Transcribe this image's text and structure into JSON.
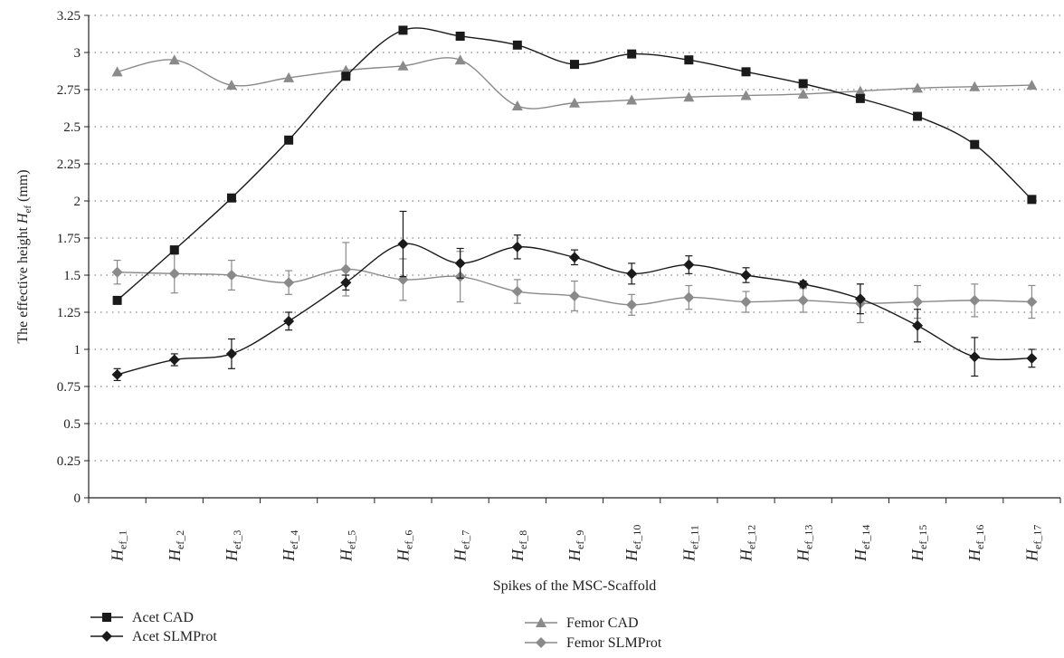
{
  "chart_data": {
    "type": "line",
    "title": "",
    "xlabel": "Spikes of the MSC-Scaffold",
    "ylabel": "The effective height H_ef (mm)",
    "ylabel_parts": {
      "prefix": "The effective height ",
      "symbol": "H",
      "subscript": "ef",
      "suffix": " (mm)"
    },
    "ylim": [
      0,
      3.25
    ],
    "yticks": [
      0,
      0.25,
      0.5,
      0.75,
      1,
      1.25,
      1.5,
      1.75,
      2,
      2.25,
      2.5,
      2.75,
      3,
      3.25
    ],
    "ytick_labels": [
      "0",
      "0.25",
      "0.5",
      "0.75",
      "1",
      "1.25",
      "1.5",
      "1.75",
      "2",
      "2.25",
      "2.5",
      "2.75",
      "3",
      "3.25"
    ],
    "grid": "horizontal dotted",
    "categories": [
      "H_ef_1",
      "H_ef_2",
      "H_ef_3",
      "H_ef_4",
      "H_ef_5",
      "H_ef_6",
      "H_ef_7",
      "H_ef_8",
      "H_ef_9",
      "H_ef_10",
      "H_ef_11",
      "H_ef_12",
      "H_ef_13",
      "H_ef_14",
      "H_ef_15",
      "H_ef_16",
      "H_ef_17"
    ],
    "category_parts": [
      {
        "main": "H",
        "sub": "ef_1"
      },
      {
        "main": "H",
        "sub": "ef_2"
      },
      {
        "main": "H",
        "sub": "ef_3"
      },
      {
        "main": "H",
        "sub": "ef_4"
      },
      {
        "main": "H",
        "sub": "ef_5"
      },
      {
        "main": "H",
        "sub": "ef_6"
      },
      {
        "main": "H",
        "sub": "ef_7"
      },
      {
        "main": "H",
        "sub": "ef_8"
      },
      {
        "main": "H",
        "sub": "ef_9"
      },
      {
        "main": "H",
        "sub": "ef_10"
      },
      {
        "main": "H",
        "sub": "ef_11"
      },
      {
        "main": "H",
        "sub": "ef_12"
      },
      {
        "main": "H",
        "sub": "ef_13"
      },
      {
        "main": "H",
        "sub": "ef_14"
      },
      {
        "main": "H",
        "sub": "ef_15"
      },
      {
        "main": "H",
        "sub": "ef_16"
      },
      {
        "main": "H",
        "sub": "ef_17"
      }
    ],
    "legend_position": "bottom",
    "series": [
      {
        "name": "Acet CAD",
        "color": "#1a1a1a",
        "marker": "square",
        "values": [
          1.33,
          1.67,
          2.02,
          2.41,
          2.84,
          3.15,
          3.11,
          3.05,
          2.92,
          2.99,
          2.95,
          2.87,
          2.79,
          2.69,
          2.57,
          2.38,
          2.01
        ],
        "errors": null
      },
      {
        "name": "Acet SLMProt",
        "color": "#1a1a1a",
        "marker": "diamond",
        "values": [
          0.83,
          0.93,
          0.97,
          1.19,
          1.45,
          1.71,
          1.58,
          1.69,
          1.62,
          1.51,
          1.57,
          1.5,
          1.44,
          1.34,
          1.16,
          0.95,
          0.94
        ],
        "errors": [
          0.04,
          0.04,
          0.1,
          0.06,
          0.05,
          0.22,
          0.1,
          0.08,
          0.05,
          0.07,
          0.06,
          0.05,
          0.02,
          0.1,
          0.11,
          0.13,
          0.06
        ]
      },
      {
        "name": "Femor CAD",
        "color": "#8a8a8a",
        "marker": "triangle",
        "values": [
          2.87,
          2.95,
          2.78,
          2.83,
          2.88,
          2.91,
          2.95,
          2.64,
          2.66,
          2.68,
          2.7,
          2.71,
          2.72,
          2.74,
          2.76,
          2.77,
          2.78
        ],
        "errors": null
      },
      {
        "name": "Femor SLMProt",
        "color": "#8a8a8a",
        "marker": "diamond",
        "values": [
          1.52,
          1.51,
          1.5,
          1.45,
          1.54,
          1.47,
          1.49,
          1.39,
          1.36,
          1.3,
          1.35,
          1.32,
          1.33,
          1.31,
          1.32,
          1.33,
          1.32
        ],
        "errors": [
          0.08,
          0.13,
          0.1,
          0.08,
          0.18,
          0.14,
          0.17,
          0.08,
          0.1,
          0.07,
          0.08,
          0.07,
          0.08,
          0.13,
          0.11,
          0.11,
          0.11
        ]
      }
    ]
  }
}
